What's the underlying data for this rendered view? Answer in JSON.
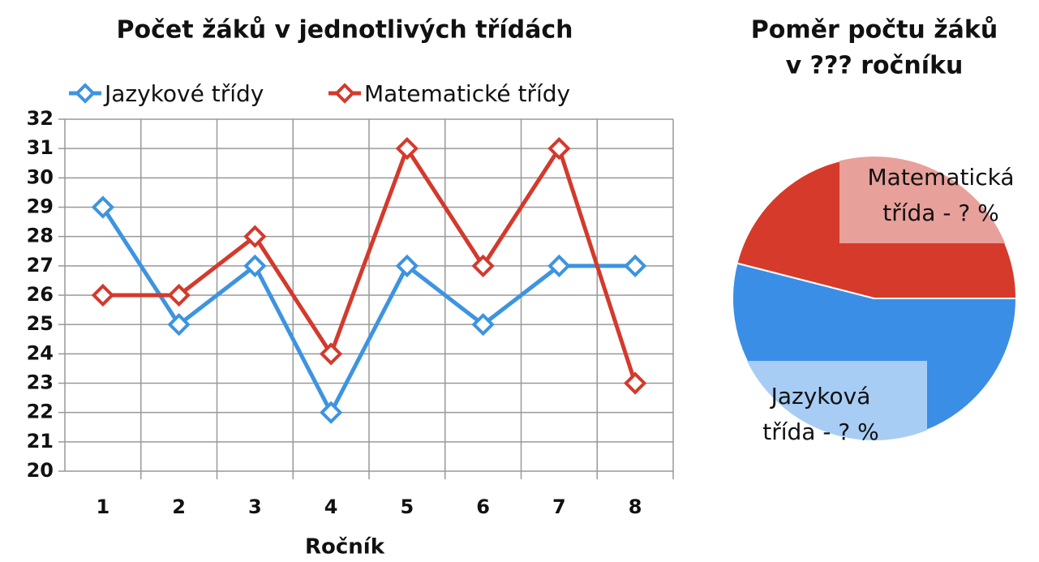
{
  "chart_data": [
    {
      "type": "line",
      "title": "Počet žáků v jednotlivých třídách",
      "x_label": "Ročník",
      "categories": [
        "1",
        "2",
        "3",
        "4",
        "5",
        "6",
        "7",
        "8"
      ],
      "series": [
        {
          "name": "Jazykové třídy",
          "color": "#3d94e0",
          "values": [
            29,
            25,
            27,
            22,
            27,
            25,
            27,
            27
          ]
        },
        {
          "name": "Matematické třídy",
          "color": "#d33a2c",
          "values": [
            26,
            26,
            28,
            24,
            31,
            27,
            31,
            23
          ]
        }
      ],
      "ylim": [
        20,
        32
      ],
      "yticks": [
        20,
        21,
        22,
        23,
        24,
        25,
        26,
        27,
        28,
        29,
        30,
        31,
        32
      ],
      "grid": true,
      "legend": "top"
    },
    {
      "type": "pie",
      "title": [
        "Poměr počtu žáků",
        "v ??? ročníku"
      ],
      "categories": [
        [
          "Jazyková",
          "třída - ? %"
        ],
        [
          "Matematická",
          "třída - ? %"
        ]
      ],
      "values": [
        54,
        46
      ],
      "colors": [
        "#3b8ee6",
        "#d63a2a"
      ],
      "label_colors": [
        "#a8cdf5",
        "#e8a09a"
      ]
    }
  ]
}
